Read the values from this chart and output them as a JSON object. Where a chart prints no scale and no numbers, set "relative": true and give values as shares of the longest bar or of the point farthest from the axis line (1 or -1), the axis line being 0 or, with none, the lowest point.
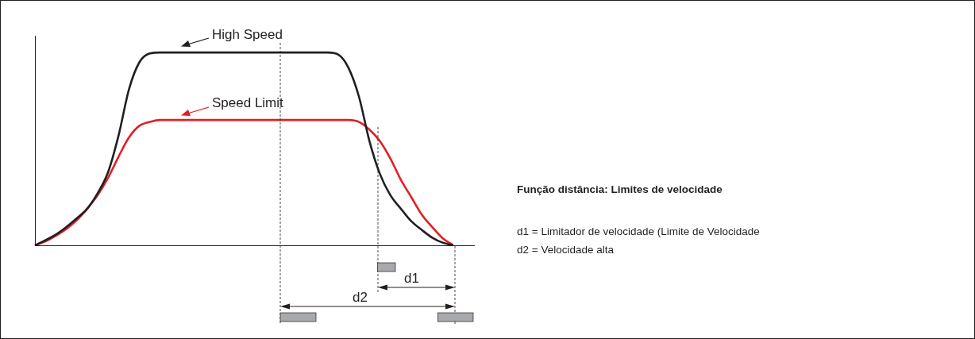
{
  "chart_data": {
    "type": "line",
    "title": "Função distância: Limites de velocidade",
    "relative": true,
    "legend": "top",
    "grid": false,
    "marker": "none",
    "line_style": "solid",
    "categories": [
      null,
      null,
      null,
      null,
      null,
      null,
      null,
      null,
      null,
      null,
      null,
      null,
      null,
      null,
      null,
      null,
      null,
      null,
      null,
      null,
      null,
      null,
      null,
      null,
      null,
      null,
      null,
      null,
      null,
      null,
      null,
      null,
      null,
      null,
      null,
      null,
      null,
      null,
      null,
      null,
      null,
      null,
      null
    ],
    "series": [
      {
        "name": "High Speed",
        "color": "#231f20",
        "values": [
          0,
          0.026,
          0.056,
          0.095,
          0.14,
          0.19,
          0.27,
          0.38,
          0.57,
          0.81,
          0.95,
          0.995,
          1,
          1,
          1,
          1,
          1,
          1,
          1,
          1,
          1,
          1,
          1,
          1,
          1,
          1,
          1,
          1,
          1,
          0.99,
          0.92,
          0.77,
          0.54,
          0.37,
          0.26,
          0.19,
          0.125,
          0.08,
          0.04,
          0.014,
          0,
          null,
          null
        ]
      },
      {
        "name": "Speed Limit",
        "color": "#e31e26",
        "values": [
          0,
          0.02,
          0.05,
          0.085,
          0.13,
          0.19,
          0.26,
          0.35,
          0.46,
          0.56,
          0.62,
          0.64,
          0.65,
          0.65,
          0.65,
          0.65,
          0.65,
          0.65,
          0.65,
          0.65,
          0.65,
          0.65,
          0.65,
          0.65,
          0.65,
          0.65,
          0.65,
          0.65,
          0.65,
          0.65,
          0.65,
          0.64,
          0.6,
          0.54,
          0.45,
          0.34,
          0.25,
          0.16,
          0.095,
          0.037,
          0,
          null,
          null
        ]
      }
    ],
    "annotations": [
      "d1 = Limitador de velocidade (Limite de Velocidade",
      "d2 = Velocidade alta",
      "d1",
      "d2"
    ]
  }
}
